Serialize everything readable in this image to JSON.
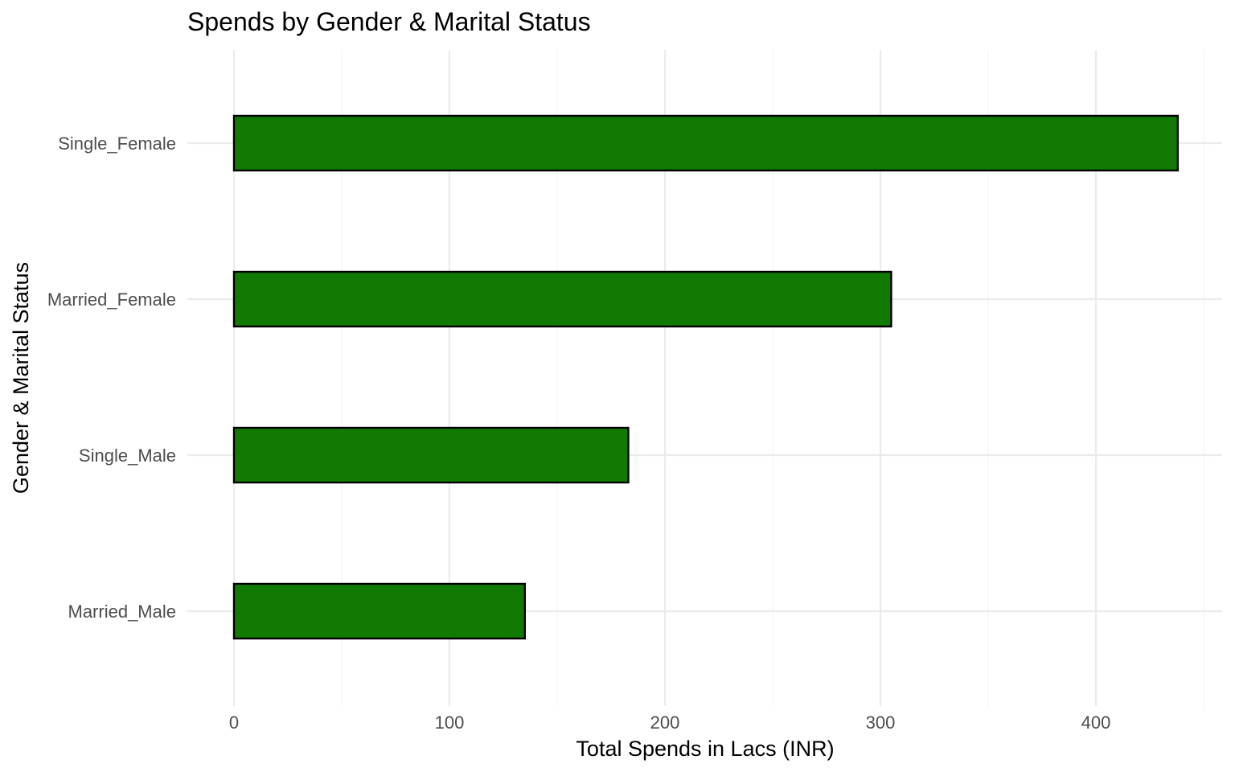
{
  "chart_data": {
    "type": "bar",
    "orientation": "horizontal",
    "title": "Spends by Gender & Marital Status",
    "xlabel": "Total Spends in Lacs (INR)",
    "ylabel": "Gender & Marital Status",
    "categories": [
      "Single_Female",
      "Married_Female",
      "Single_Male",
      "Married_Male"
    ],
    "values": [
      438,
      305,
      183,
      135
    ],
    "xlim": [
      0,
      460
    ],
    "xticks": [
      0,
      100,
      200,
      300,
      400
    ],
    "grid": true,
    "bar_fill": "#117a03",
    "bar_outline": "#000000"
  }
}
